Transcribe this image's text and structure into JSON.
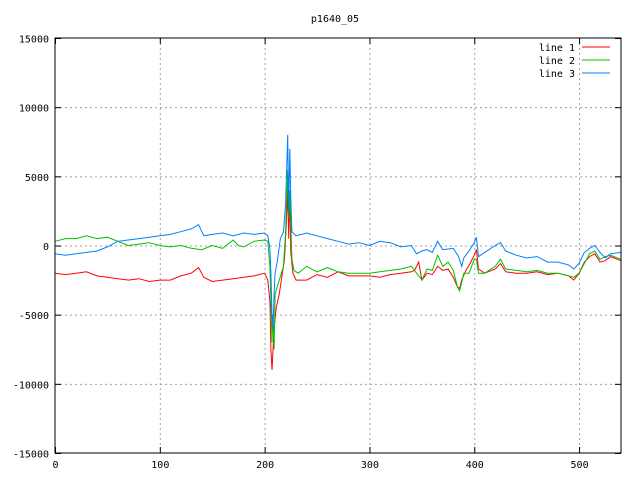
{
  "chart_data": {
    "type": "line",
    "title": "p1640_05",
    "xlabel": "",
    "ylabel": "",
    "xlim": [
      0,
      540
    ],
    "ylim": [
      -15000,
      15000
    ],
    "xticks": [
      0,
      100,
      200,
      300,
      400,
      500
    ],
    "yticks": [
      -15000,
      -10000,
      -5000,
      0,
      5000,
      10000,
      15000
    ],
    "grid": true,
    "legend": "top-right",
    "series": [
      {
        "name": "line 1",
        "color": "#ff0000",
        "x": [
          0,
          10,
          20,
          30,
          40,
          50,
          60,
          70,
          80,
          90,
          100,
          110,
          120,
          130,
          137,
          142,
          150,
          160,
          170,
          180,
          190,
          200,
          203,
          205,
          206,
          207,
          209,
          211,
          214,
          217,
          219,
          221,
          222,
          223,
          224,
          225,
          227,
          230,
          240,
          250,
          260,
          270,
          280,
          290,
          300,
          310,
          320,
          330,
          340,
          343,
          347,
          350,
          355,
          360,
          365,
          370,
          375,
          380,
          384,
          386,
          388,
          392,
          396,
          400,
          402,
          404,
          410,
          420,
          425,
          430,
          440,
          450,
          460,
          470,
          480,
          490,
          495,
          500,
          505,
          510,
          515,
          520,
          525,
          530,
          540
        ],
        "y": [
          -2000,
          -2100,
          -2000,
          -1900,
          -2200,
          -2300,
          -2400,
          -2500,
          -2400,
          -2600,
          -2500,
          -2500,
          -2200,
          -2000,
          -1600,
          -2300,
          -2600,
          -2500,
          -2400,
          -2300,
          -2200,
          -2000,
          -2500,
          -4000,
          -7500,
          -9000,
          -6000,
          -4500,
          -3500,
          -2000,
          -1000,
          2000,
          4000,
          500,
          4000,
          -500,
          -2000,
          -2500,
          -2500,
          -2100,
          -2300,
          -1900,
          -2200,
          -2200,
          -2200,
          -2300,
          -2100,
          -2000,
          -1900,
          -1800,
          -1200,
          -2500,
          -2000,
          -2100,
          -1500,
          -1800,
          -1700,
          -2300,
          -3000,
          -3100,
          -2500,
          -1800,
          -1300,
          -700,
          -300,
          -1700,
          -2000,
          -1700,
          -1300,
          -1900,
          -2000,
          -2000,
          -1900,
          -2100,
          -2000,
          -2200,
          -2500,
          -2000,
          -1200,
          -800,
          -600,
          -1200,
          -1100,
          -800,
          -1100
        ]
      },
      {
        "name": "line 2",
        "color": "#00c000",
        "x": [
          0,
          10,
          20,
          30,
          40,
          50,
          60,
          70,
          80,
          90,
          100,
          110,
          120,
          130,
          140,
          150,
          160,
          170,
          175,
          180,
          190,
          200,
          203,
          205,
          206,
          207,
          208,
          209,
          210,
          214,
          218,
          220,
          222,
          223,
          224,
          226,
          228,
          232,
          240,
          250,
          260,
          270,
          280,
          300,
          320,
          330,
          340,
          345,
          350,
          355,
          360,
          365,
          370,
          375,
          380,
          384,
          386,
          390,
          395,
          400,
          402,
          404,
          410,
          420,
          425,
          430,
          440,
          450,
          460,
          470,
          480,
          490,
          495,
          500,
          505,
          510,
          515,
          520,
          525,
          530,
          540
        ],
        "y": [
          300,
          500,
          500,
          700,
          500,
          600,
          300,
          0,
          100,
          200,
          0,
          -100,
          0,
          -200,
          -300,
          0,
          -200,
          400,
          0,
          -100,
          300,
          400,
          300,
          -1500,
          -4000,
          -7000,
          -5000,
          -7500,
          -3500,
          -2500,
          -1500,
          1000,
          5500,
          2000,
          4000,
          -1000,
          -1800,
          -2000,
          -1500,
          -1900,
          -1600,
          -1900,
          -2000,
          -2000,
          -1800,
          -1700,
          -1500,
          -2000,
          -2500,
          -1700,
          -1800,
          -700,
          -1500,
          -1200,
          -1800,
          -3000,
          -3300,
          -2000,
          -2000,
          -1000,
          -1000,
          -2000,
          -2000,
          -1500,
          -1000,
          -1700,
          -1800,
          -1900,
          -1800,
          -2000,
          -2000,
          -2200,
          -2300,
          -2000,
          -1300,
          -600,
          -400,
          -1000,
          -800,
          -700,
          -1000
        ]
      },
      {
        "name": "line 3",
        "color": "#0080ff",
        "x": [
          0,
          10,
          20,
          30,
          40,
          50,
          60,
          70,
          80,
          90,
          100,
          110,
          120,
          130,
          137,
          142,
          150,
          160,
          170,
          180,
          190,
          200,
          203,
          205,
          206,
          207,
          208,
          209,
          210,
          212,
          215,
          218,
          220,
          222,
          223,
          224,
          225,
          226,
          230,
          240,
          250,
          260,
          270,
          280,
          290,
          300,
          310,
          320,
          330,
          340,
          345,
          350,
          355,
          360,
          365,
          370,
          380,
          385,
          388,
          390,
          395,
          400,
          402,
          404,
          410,
          420,
          425,
          430,
          440,
          450,
          460,
          470,
          480,
          490,
          495,
          500,
          505,
          510,
          515,
          520,
          525,
          530,
          540
        ],
        "y": [
          -600,
          -700,
          -600,
          -500,
          -400,
          -100,
          300,
          400,
          500,
          600,
          700,
          800,
          1000,
          1200,
          1500,
          700,
          800,
          900,
          700,
          900,
          800,
          900,
          700,
          -200,
          -2000,
          -5000,
          -6000,
          -3500,
          -2000,
          -1200,
          500,
          1000,
          3000,
          8000,
          2500,
          7000,
          3500,
          1000,
          700,
          900,
          700,
          500,
          300,
          100,
          200,
          0,
          300,
          200,
          -100,
          0,
          -600,
          -400,
          -300,
          -500,
          300,
          -300,
          -200,
          -800,
          -1500,
          -900,
          -400,
          200,
          600,
          -800,
          -500,
          0,
          200,
          -400,
          -700,
          -900,
          -800,
          -1200,
          -1200,
          -1400,
          -1700,
          -1300,
          -500,
          -200,
          0,
          -500,
          -900,
          -600,
          -500
        ]
      }
    ]
  }
}
